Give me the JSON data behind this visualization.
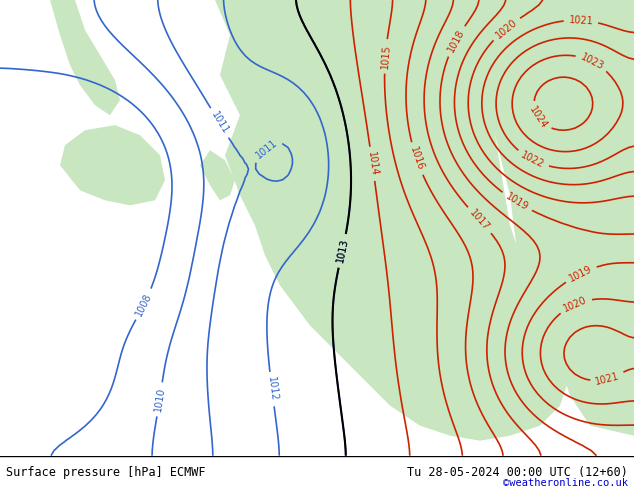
{
  "title_left": "Surface pressure [hPa] ECMWF",
  "title_right": "Tu 28-05-2024 00:00 UTC (12+60)",
  "watermark": "©weatheronline.co.uk",
  "bg_color": "#d0e8f0",
  "land_color": "#c8e6c0",
  "fig_width": 6.34,
  "fig_height": 4.9,
  "dpi": 100,
  "bottom_bar_color": "#000000",
  "bottom_bar_bg": "#ffffff",
  "font_size_labels": 8,
  "font_size_bottom": 8
}
